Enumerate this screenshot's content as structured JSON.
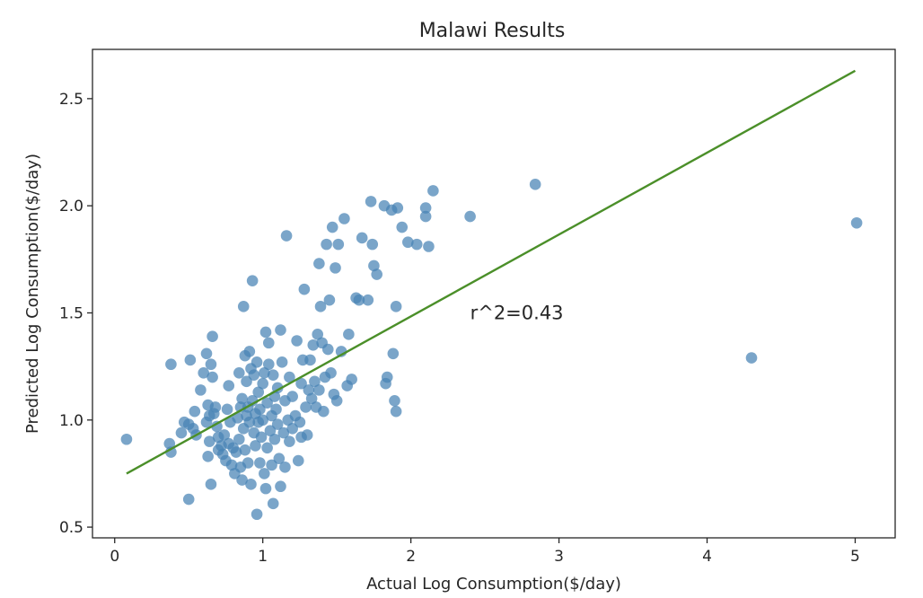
{
  "chart_data": {
    "type": "scatter",
    "title": "Malawi Results",
    "xlabel": "Actual Log Consumption($/day)",
    "ylabel": "Predicted Log Consumption($/day)",
    "xlim": [
      -0.15,
      5.27
    ],
    "ylim": [
      0.45,
      2.73
    ],
    "x_ticks": [
      0,
      1,
      2,
      3,
      4,
      5
    ],
    "y_ticks": [
      0.5,
      1.0,
      1.5,
      2.0,
      2.5
    ],
    "x_tick_labels": [
      "0",
      "1",
      "2",
      "3",
      "4",
      "5"
    ],
    "y_tick_labels": [
      "0.5",
      "1.0",
      "1.5",
      "2.0",
      "2.5"
    ],
    "grid": false,
    "annotation": {
      "text": "r^2=0.43",
      "x": 2.4,
      "y": 1.5
    },
    "colors": {
      "points": "#4682b4",
      "fit_line": "#4b8f29",
      "axes": "#262626"
    },
    "fit_line": {
      "x": [
        0.08,
        5.0
      ],
      "y": [
        0.75,
        2.63
      ]
    },
    "series": [
      {
        "points": [
          [
            0.08,
            0.91
          ],
          [
            0.37,
            0.89
          ],
          [
            0.38,
            0.85
          ],
          [
            0.38,
            1.26
          ],
          [
            0.45,
            0.94
          ],
          [
            0.47,
            0.99
          ],
          [
            0.5,
            0.98
          ],
          [
            0.5,
            0.63
          ],
          [
            0.51,
            1.28
          ],
          [
            0.53,
            0.96
          ],
          [
            0.54,
            1.04
          ],
          [
            0.55,
            0.93
          ],
          [
            0.58,
            1.14
          ],
          [
            0.6,
            1.22
          ],
          [
            0.62,
            0.99
          ],
          [
            0.62,
            1.31
          ],
          [
            0.63,
            1.07
          ],
          [
            0.63,
            0.83
          ],
          [
            0.64,
            0.9
          ],
          [
            0.64,
            1.02
          ],
          [
            0.65,
            0.7
          ],
          [
            0.65,
            1.26
          ],
          [
            0.66,
            1.39
          ],
          [
            0.66,
            1.2
          ],
          [
            0.67,
            1.03
          ],
          [
            0.68,
            1.06
          ],
          [
            0.69,
            0.97
          ],
          [
            0.7,
            0.92
          ],
          [
            0.7,
            0.86
          ],
          [
            0.72,
            0.88
          ],
          [
            0.73,
            0.84
          ],
          [
            0.74,
            0.93
          ],
          [
            0.75,
            0.81
          ],
          [
            0.76,
            1.05
          ],
          [
            0.77,
            0.89
          ],
          [
            0.77,
            1.16
          ],
          [
            0.78,
            0.99
          ],
          [
            0.79,
            0.79
          ],
          [
            0.8,
            0.87
          ],
          [
            0.81,
            0.75
          ],
          [
            0.82,
            0.85
          ],
          [
            0.83,
            1.01
          ],
          [
            0.84,
            0.91
          ],
          [
            0.84,
            1.22
          ],
          [
            0.85,
            0.78
          ],
          [
            0.85,
            1.06
          ],
          [
            0.86,
            0.72
          ],
          [
            0.86,
            1.1
          ],
          [
            0.87,
            1.53
          ],
          [
            0.87,
            0.96
          ],
          [
            0.88,
            1.3
          ],
          [
            0.88,
            0.86
          ],
          [
            0.89,
            1.02
          ],
          [
            0.89,
            1.18
          ],
          [
            0.9,
            0.8
          ],
          [
            0.9,
            1.06
          ],
          [
            0.91,
            0.99
          ],
          [
            0.91,
            1.32
          ],
          [
            0.92,
            1.24
          ],
          [
            0.92,
            0.7
          ],
          [
            0.93,
            1.65
          ],
          [
            0.93,
            1.09
          ],
          [
            0.94,
            0.94
          ],
          [
            0.94,
            1.21
          ],
          [
            0.95,
            1.03
          ],
          [
            0.95,
            0.88
          ],
          [
            0.96,
            0.56
          ],
          [
            0.96,
            1.27
          ],
          [
            0.97,
            0.99
          ],
          [
            0.97,
            1.13
          ],
          [
            0.98,
            0.8
          ],
          [
            0.98,
            1.05
          ],
          [
            0.99,
            0.92
          ],
          [
            1.0,
            1.17
          ],
          [
            1.0,
            1.0
          ],
          [
            1.01,
            0.75
          ],
          [
            1.01,
            1.22
          ],
          [
            1.02,
            0.68
          ],
          [
            1.02,
            1.41
          ],
          [
            1.03,
            1.08
          ],
          [
            1.03,
            0.87
          ],
          [
            1.04,
            1.26
          ],
          [
            1.04,
            1.36
          ],
          [
            1.05,
            0.95
          ],
          [
            1.06,
            1.02
          ],
          [
            1.06,
            0.79
          ],
          [
            1.07,
            0.61
          ],
          [
            1.07,
            1.21
          ],
          [
            1.08,
            1.11
          ],
          [
            1.08,
            0.91
          ],
          [
            1.09,
            1.05
          ],
          [
            1.1,
            0.98
          ],
          [
            1.1,
            1.15
          ],
          [
            1.11,
            0.82
          ],
          [
            1.12,
            1.42
          ],
          [
            1.12,
            0.69
          ],
          [
            1.13,
            1.27
          ],
          [
            1.14,
            0.94
          ],
          [
            1.15,
            1.09
          ],
          [
            1.15,
            0.78
          ],
          [
            1.16,
            1.86
          ],
          [
            1.17,
            1.0
          ],
          [
            1.18,
            1.2
          ],
          [
            1.18,
            0.9
          ],
          [
            1.2,
            1.11
          ],
          [
            1.2,
            0.96
          ],
          [
            1.22,
            1.02
          ],
          [
            1.23,
            1.37
          ],
          [
            1.24,
            0.81
          ],
          [
            1.25,
            0.99
          ],
          [
            1.26,
            1.17
          ],
          [
            1.26,
            0.92
          ],
          [
            1.27,
            1.28
          ],
          [
            1.28,
            1.61
          ],
          [
            1.29,
            1.06
          ],
          [
            1.3,
            0.93
          ],
          [
            1.31,
            1.14
          ],
          [
            1.32,
            1.28
          ],
          [
            1.33,
            1.1
          ],
          [
            1.34,
            1.35
          ],
          [
            1.35,
            1.18
          ],
          [
            1.36,
            1.06
          ],
          [
            1.37,
            1.4
          ],
          [
            1.38,
            1.14
          ],
          [
            1.38,
            1.73
          ],
          [
            1.39,
            1.53
          ],
          [
            1.4,
            1.36
          ],
          [
            1.41,
            1.04
          ],
          [
            1.42,
            1.2
          ],
          [
            1.43,
            1.82
          ],
          [
            1.44,
            1.33
          ],
          [
            1.45,
            1.56
          ],
          [
            1.46,
            1.22
          ],
          [
            1.47,
            1.9
          ],
          [
            1.48,
            1.12
          ],
          [
            1.49,
            1.71
          ],
          [
            1.5,
            1.09
          ],
          [
            1.51,
            1.82
          ],
          [
            1.53,
            1.32
          ],
          [
            1.55,
            1.94
          ],
          [
            1.57,
            1.16
          ],
          [
            1.58,
            1.4
          ],
          [
            1.6,
            1.19
          ],
          [
            1.63,
            1.57
          ],
          [
            1.65,
            1.56
          ],
          [
            1.67,
            1.85
          ],
          [
            1.71,
            1.56
          ],
          [
            1.73,
            2.02
          ],
          [
            1.74,
            1.82
          ],
          [
            1.75,
            1.72
          ],
          [
            1.77,
            1.68
          ],
          [
            1.82,
            2.0
          ],
          [
            1.83,
            1.17
          ],
          [
            1.84,
            1.2
          ],
          [
            1.87,
            1.98
          ],
          [
            1.88,
            1.31
          ],
          [
            1.89,
            1.09
          ],
          [
            1.9,
            1.04
          ],
          [
            1.9,
            1.53
          ],
          [
            1.91,
            1.99
          ],
          [
            1.94,
            1.9
          ],
          [
            1.98,
            1.83
          ],
          [
            2.04,
            1.82
          ],
          [
            2.1,
            1.95
          ],
          [
            2.1,
            1.99
          ],
          [
            2.12,
            1.81
          ],
          [
            2.15,
            2.07
          ],
          [
            2.4,
            1.95
          ],
          [
            2.84,
            2.1
          ],
          [
            4.3,
            1.29
          ],
          [
            5.01,
            1.92
          ]
        ]
      }
    ]
  }
}
